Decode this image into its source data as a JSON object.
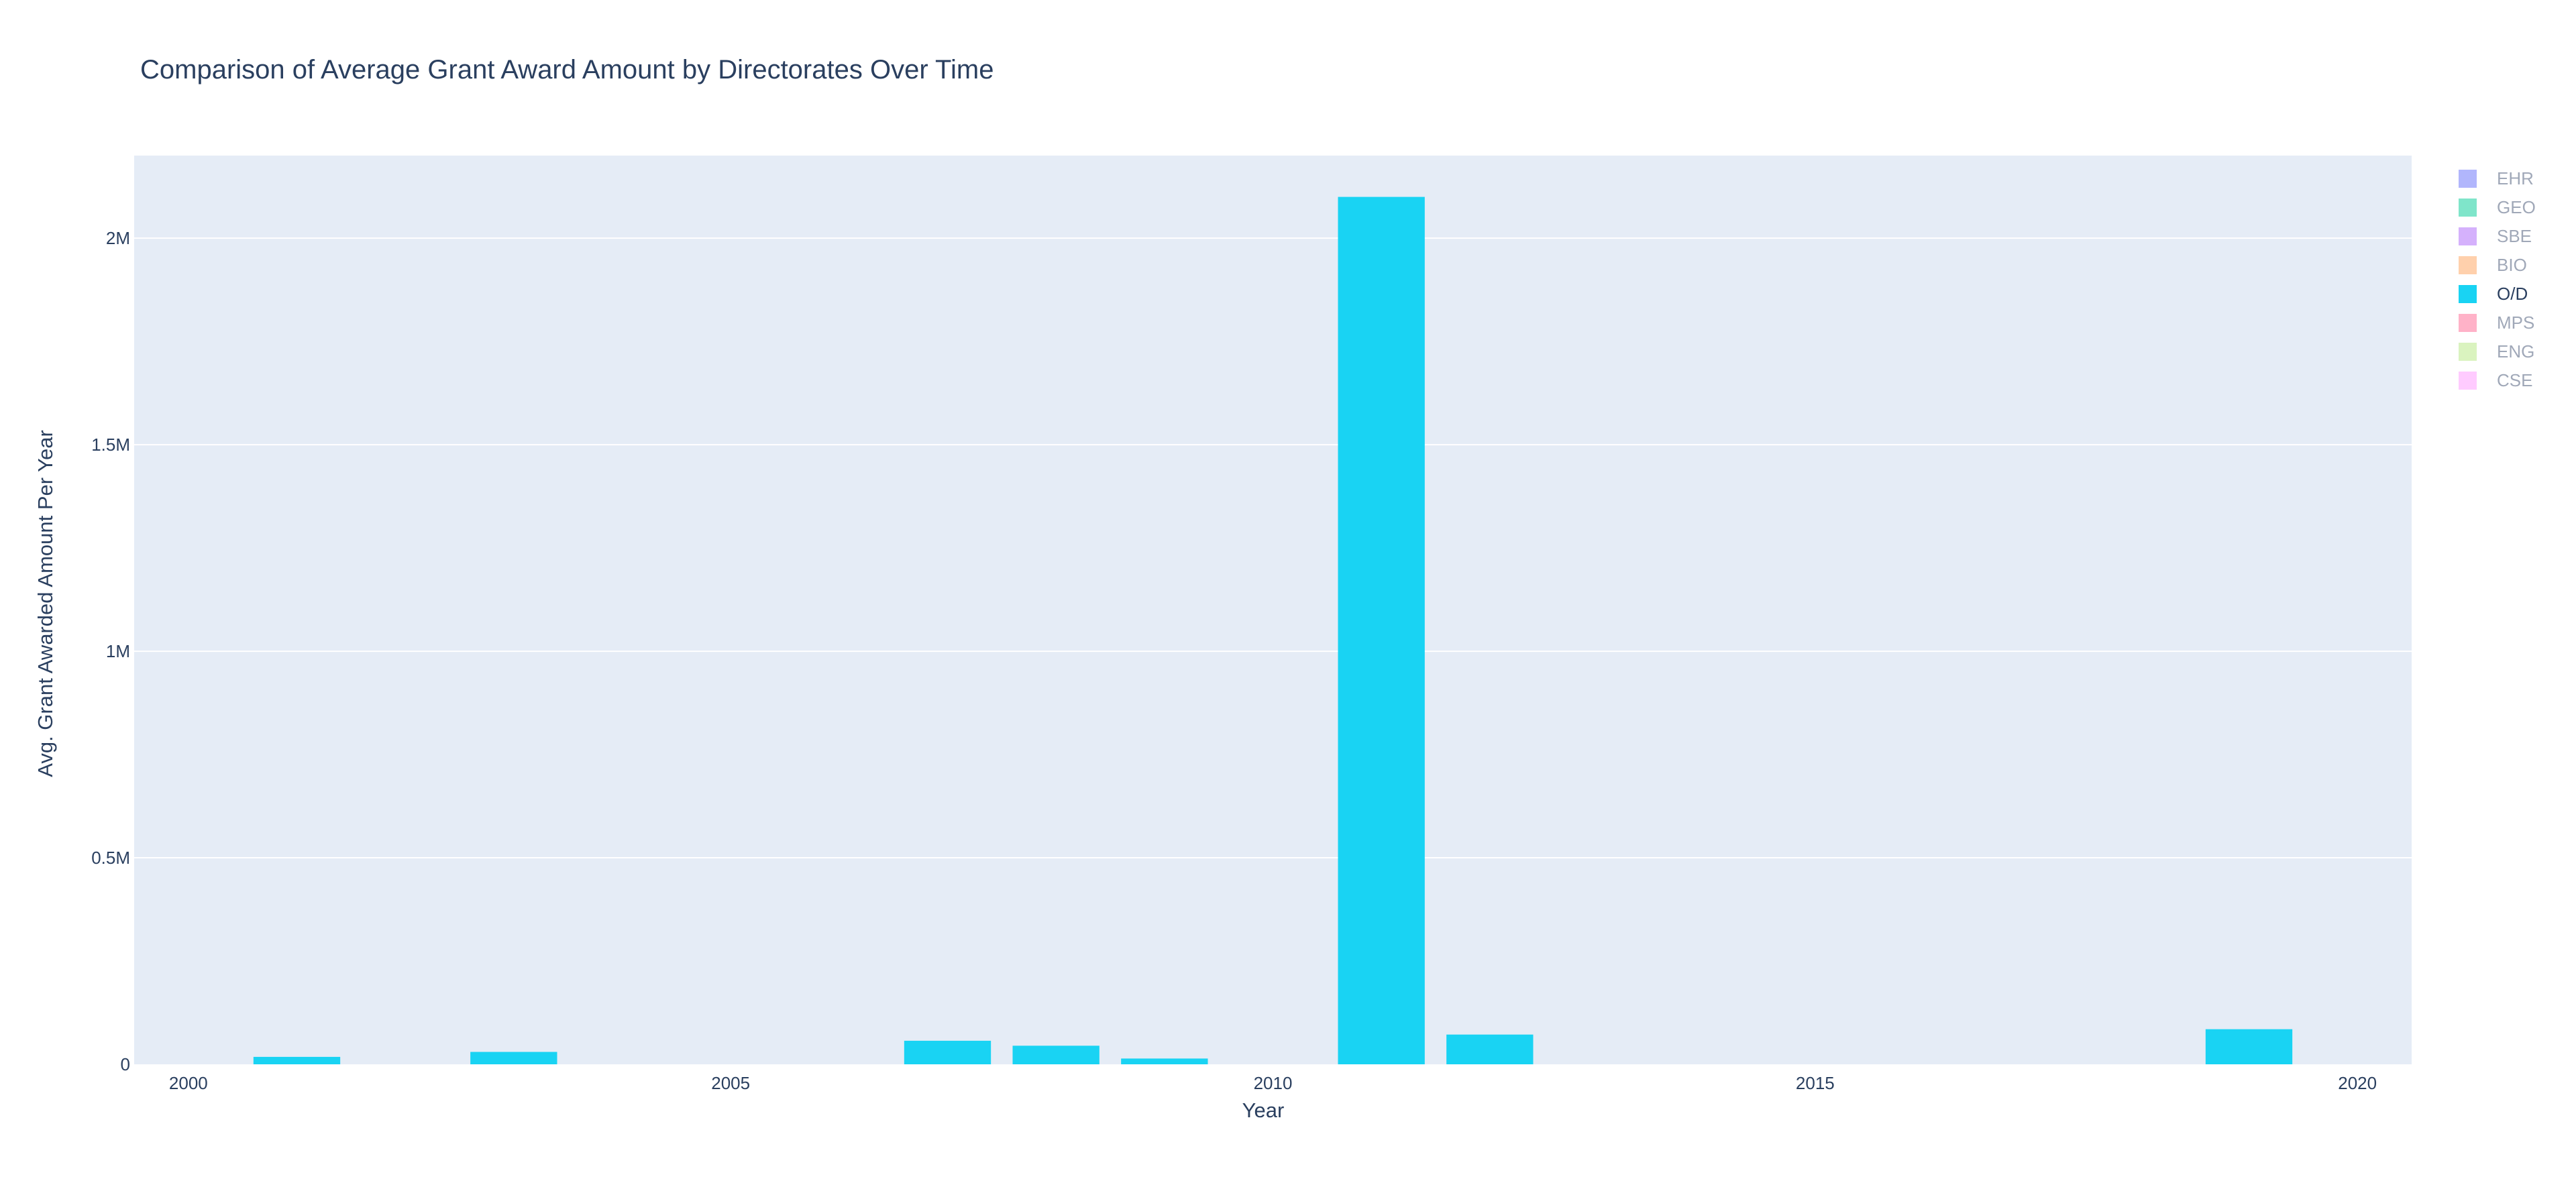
{
  "chart_data": {
    "type": "bar",
    "title": "Comparison of Average Grant Award Amount by Directorates Over Time",
    "xlabel": "Year",
    "ylabel": "Avg. Grant Awarded Amount Per Year",
    "xlim": [
      1999.5,
      2020.5
    ],
    "ylim": [
      0,
      2200000
    ],
    "x_ticks": [
      2000,
      2005,
      2010,
      2015,
      2020
    ],
    "x_tick_labels": [
      "2000",
      "2005",
      "2010",
      "2015",
      "2020"
    ],
    "y_ticks": [
      0,
      500000,
      1000000,
      1500000,
      2000000
    ],
    "y_tick_labels": [
      "0",
      "0.5M",
      "1M",
      "1.5M",
      "2M"
    ],
    "grid": true,
    "legend_placement": "top-right",
    "series": [
      {
        "name": "EHR",
        "color": "#636efa",
        "visible": false,
        "x": [],
        "values": []
      },
      {
        "name": "GEO",
        "color": "#00cc96",
        "visible": false,
        "x": [],
        "values": []
      },
      {
        "name": "SBE",
        "color": "#ab63fa",
        "visible": false,
        "x": [],
        "values": []
      },
      {
        "name": "BIO",
        "color": "#ffa15a",
        "visible": false,
        "x": [],
        "values": []
      },
      {
        "name": "O/D",
        "color": "#19d3f3",
        "visible": true,
        "x": [
          2001,
          2003,
          2007,
          2008,
          2009,
          2011,
          2012,
          2019
        ],
        "values": [
          18000,
          30000,
          57000,
          45000,
          14000,
          2100000,
          72000,
          85000
        ]
      },
      {
        "name": "MPS",
        "color": "#ff6692",
        "visible": false,
        "x": [],
        "values": []
      },
      {
        "name": "ENG",
        "color": "#b6e880",
        "visible": false,
        "x": [],
        "values": []
      },
      {
        "name": "CSE",
        "color": "#ff97ff",
        "visible": false,
        "x": [],
        "values": []
      }
    ]
  }
}
